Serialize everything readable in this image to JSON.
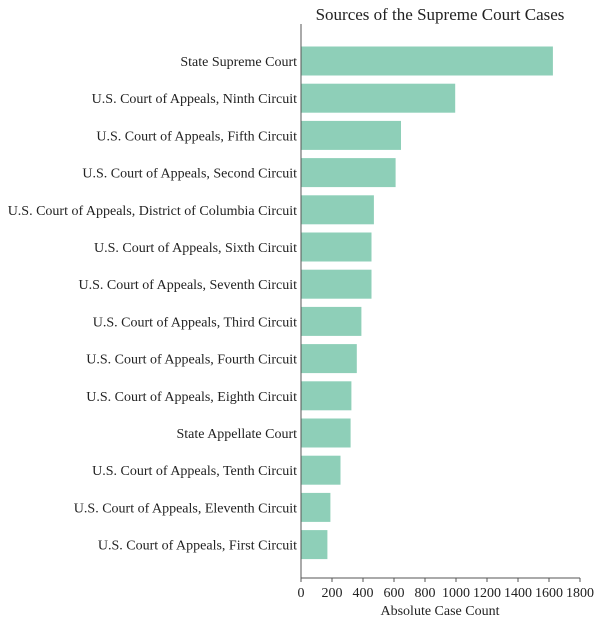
{
  "chart_data": {
    "type": "bar",
    "orientation": "horizontal",
    "title": "Sources of the Supreme Court Cases",
    "xlabel": "Absolute Case Count",
    "ylabel": "",
    "xlim": [
      0,
      1800
    ],
    "xticks": [
      0,
      200,
      400,
      600,
      800,
      1000,
      1200,
      1400,
      1600,
      1800
    ],
    "grid": false,
    "bar_color": "#8ecfb8",
    "categories": [
      "State Supreme Court",
      "U.S. Court of Appeals, Ninth Circuit",
      "U.S. Court of Appeals, Fifth Circuit",
      "U.S. Court of Appeals, Second Circuit",
      "U.S. Court of Appeals, District of Columbia Circuit",
      "U.S. Court of Appeals, Sixth Circuit",
      "U.S. Court of Appeals, Seventh Circuit",
      "U.S. Court of Appeals, Third Circuit",
      "U.S. Court of Appeals, Fourth Circuit",
      "U.S. Court of Appeals, Eighth Circuit",
      "State Appellate Court",
      "U.S. Court of Appeals, Tenth Circuit",
      "U.S. Court of Appeals, Eleventh Circuit",
      "U.S. Court of Appeals, First Circuit"
    ],
    "values": [
      1625,
      995,
      645,
      610,
      470,
      455,
      455,
      390,
      360,
      325,
      320,
      255,
      190,
      170
    ]
  }
}
